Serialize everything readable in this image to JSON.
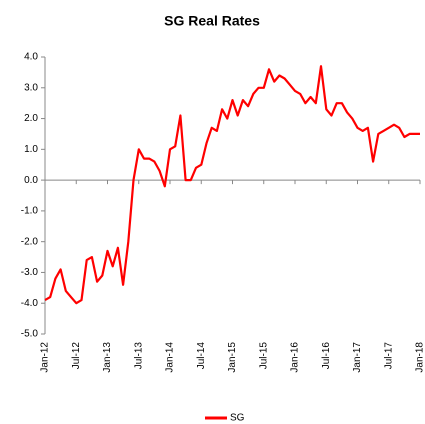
{
  "chart_data": {
    "type": "line",
    "title": "SG Real Rates",
    "categories": [
      "Jan-12",
      null,
      null,
      null,
      null,
      null,
      "Jul-12",
      null,
      null,
      null,
      null,
      null,
      "Jan-13",
      null,
      null,
      null,
      null,
      null,
      "Jul-13",
      null,
      null,
      null,
      null,
      null,
      "Jan-14",
      null,
      null,
      null,
      null,
      null,
      "Jul-14",
      null,
      null,
      null,
      null,
      null,
      "Jan-15",
      null,
      null,
      null,
      null,
      null,
      "Jul-15",
      null,
      null,
      null,
      null,
      null,
      "Jan-16",
      null,
      null,
      null,
      null,
      null,
      "Jul-16",
      null,
      null,
      null,
      null,
      null,
      "Jan-17",
      null,
      null,
      null,
      null,
      null,
      "Jul-17",
      null,
      null,
      null,
      null,
      null,
      "Jan-18"
    ],
    "series": [
      {
        "name": "SG",
        "color": "#ff0000",
        "values": [
          -3.9,
          -3.8,
          -3.2,
          -2.9,
          -3.6,
          -3.8,
          -4.0,
          -3.9,
          -2.6,
          -2.5,
          -3.3,
          -3.1,
          -2.3,
          -2.8,
          -2.2,
          -3.4,
          -2.0,
          0.0,
          1.0,
          0.7,
          0.7,
          0.6,
          0.3,
          -0.2,
          1.0,
          1.1,
          2.1,
          0.0,
          0.0,
          0.4,
          0.5,
          1.2,
          1.7,
          1.6,
          2.3,
          2.0,
          2.6,
          2.1,
          2.6,
          2.4,
          2.8,
          3.0,
          3.0,
          3.6,
          3.2,
          3.4,
          3.3,
          3.1,
          2.9,
          2.8,
          2.5,
          2.7,
          2.5,
          3.7,
          2.3,
          2.1,
          2.5,
          2.5,
          2.2,
          2.0,
          1.7,
          1.6,
          1.7,
          0.6,
          1.5,
          1.6,
          1.7,
          1.8,
          1.7,
          1.4,
          1.5,
          1.5,
          1.5
        ]
      }
    ],
    "ylim": [
      -5,
      4
    ],
    "yticks": [
      {
        "value": -5,
        "label": "-5.0"
      },
      {
        "value": -4,
        "label": "-4.0"
      },
      {
        "value": -3,
        "label": "-3.0"
      },
      {
        "value": -2,
        "label": "-2.0"
      },
      {
        "value": -1,
        "label": "-1.0"
      },
      {
        "value": 0,
        "label": "0.0"
      },
      {
        "value": 1,
        "label": "1.0"
      },
      {
        "value": 2,
        "label": "2.0"
      },
      {
        "value": 3,
        "label": "3.0"
      },
      {
        "value": 4,
        "label": "4.0"
      }
    ],
    "grid": false
  }
}
